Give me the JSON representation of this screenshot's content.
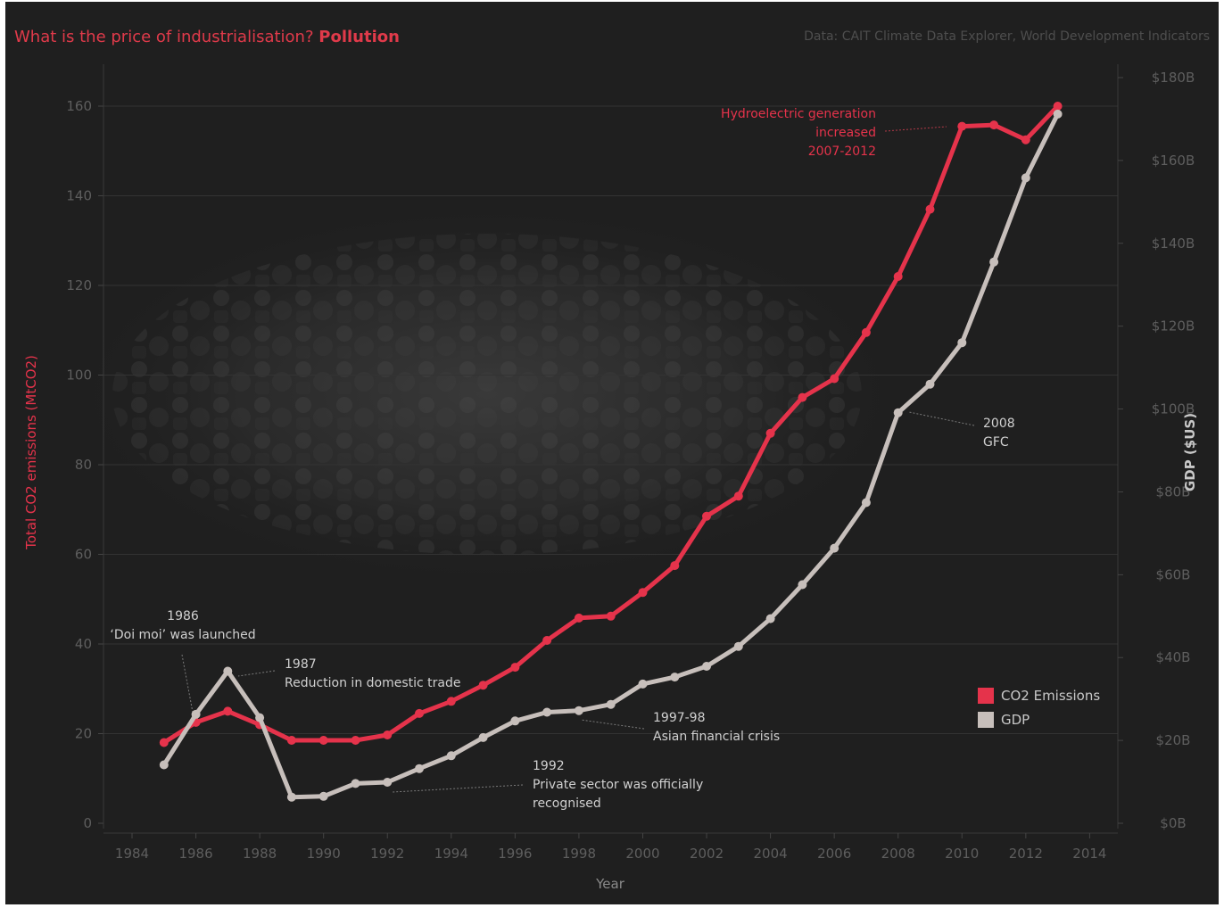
{
  "title": {
    "main": "What is the price of industrialisation?",
    "highlight": "Pollution"
  },
  "source": "Data: CAIT Climate Data Explorer, World Development Indicators",
  "colors": {
    "co2": "#e5334b",
    "gdp": "#c7bfbb",
    "background": "#1f1f1f",
    "grid": "#333333",
    "title": "#e03a4a",
    "axis_text": "#5e5e5e"
  },
  "legend": {
    "co2": "CO2 Emissions",
    "gdp": "GDP"
  },
  "chart_data": {
    "type": "line",
    "title": "What is the price of industrialisation? Pollution",
    "xlabel": "Year",
    "ylabel_left": "Total CO2 emissions (MtCO2)",
    "ylabel_right": "GDP ($US)",
    "xlim": [
      1983.5,
      2014.8
    ],
    "ylim_left": [
      0,
      160
    ],
    "ylim_right": [
      0,
      180
    ],
    "x_ticks": [
      1984,
      1986,
      1988,
      1990,
      1992,
      1994,
      1996,
      1998,
      2000,
      2002,
      2004,
      2006,
      2008,
      2010,
      2012,
      2014
    ],
    "y_left_ticks": [
      {
        "value": 0,
        "label": "0"
      },
      {
        "value": 20,
        "label": "20"
      },
      {
        "value": 40,
        "label": "40"
      },
      {
        "value": 60,
        "label": "60"
      },
      {
        "value": 80,
        "label": "80"
      },
      {
        "value": 100,
        "label": "100"
      },
      {
        "value": 120,
        "label": "120"
      },
      {
        "value": 140,
        "label": "140"
      },
      {
        "value": 160,
        "label": "160"
      }
    ],
    "y_right_ticks": [
      {
        "value": 0,
        "label": "$0B"
      },
      {
        "value": 20,
        "label": "$20B"
      },
      {
        "value": 40,
        "label": "$40B"
      },
      {
        "value": 60,
        "label": "$60B"
      },
      {
        "value": 80,
        "label": "$80B"
      },
      {
        "value": 100,
        "label": "$100B"
      },
      {
        "value": 120,
        "label": "$120B"
      },
      {
        "value": 140,
        "label": "$140B"
      },
      {
        "value": 160,
        "label": "$160B"
      },
      {
        "value": 180,
        "label": "$180B"
      }
    ],
    "grid": true,
    "legend_position": "bottom-right",
    "series": [
      {
        "name": "CO2 Emissions",
        "axis": "left",
        "unit": "MtCO2",
        "x": [
          1985,
          1986,
          1987,
          1988,
          1989,
          1990,
          1991,
          1992,
          1993,
          1994,
          1995,
          1996,
          1997,
          1998,
          1999,
          2000,
          2001,
          2002,
          2003,
          2004,
          2005,
          2006,
          2007,
          2008,
          2009,
          2010,
          2011,
          2012,
          2013
        ],
        "y": [
          18.0,
          22.5,
          25.0,
          22.0,
          18.5,
          18.5,
          18.5,
          19.7,
          24.5,
          27.2,
          30.8,
          34.8,
          40.8,
          45.8,
          46.2,
          51.5,
          57.5,
          68.5,
          73.0,
          87.0,
          95.0,
          99.2,
          109.5,
          122.0,
          137.0,
          155.5,
          155.8,
          152.5,
          160.0
        ]
      },
      {
        "name": "GDP",
        "axis": "right",
        "unit": "$B",
        "x": [
          1985,
          1986,
          1987,
          1988,
          1989,
          1990,
          1991,
          1992,
          1993,
          1994,
          1995,
          1996,
          1997,
          1998,
          1999,
          2000,
          2001,
          2002,
          2003,
          2004,
          2005,
          2006,
          2007,
          2008,
          2009,
          2010,
          2011,
          2012,
          2013
        ],
        "y": [
          14.1,
          26.3,
          36.7,
          25.5,
          6.3,
          6.5,
          9.6,
          9.9,
          13.2,
          16.3,
          20.7,
          24.7,
          26.8,
          27.2,
          28.7,
          33.6,
          35.3,
          37.9,
          42.7,
          49.4,
          57.6,
          66.4,
          77.4,
          99.1,
          106.0,
          116.0,
          135.5,
          155.8,
          171.2
        ]
      }
    ],
    "annotations": [
      {
        "lines": [
          "1986",
          "‘Doi moi’ was launched"
        ],
        "color": "#d0d0d0",
        "bold_first": false,
        "x": 1986,
        "series": "GDP"
      },
      {
        "lines": [
          "1987",
          "Reduction in domestic trade"
        ],
        "color": "#d0d0d0",
        "bold_first": false,
        "x": 1987,
        "series": "GDP"
      },
      {
        "lines": [
          "1992",
          "Private sector was officially",
          "recognised"
        ],
        "color": "#d0d0d0",
        "bold_first": false,
        "x": 1992,
        "series": "GDP"
      },
      {
        "lines": [
          "1997-98",
          "Asian financial crisis"
        ],
        "color": "#d0d0d0",
        "bold_first": false,
        "x": 1998,
        "series": "GDP"
      },
      {
        "lines": [
          "2008",
          "GFC"
        ],
        "color": "#d0d0d0",
        "bold_first": false,
        "x": 2008,
        "series": "GDP"
      },
      {
        "lines": [
          "Hydroelectric generation",
          "increased",
          "2007-2012"
        ],
        "color": "#e5334b",
        "bold_first": false,
        "x": 2010,
        "series": "CO2 Emissions"
      }
    ]
  }
}
